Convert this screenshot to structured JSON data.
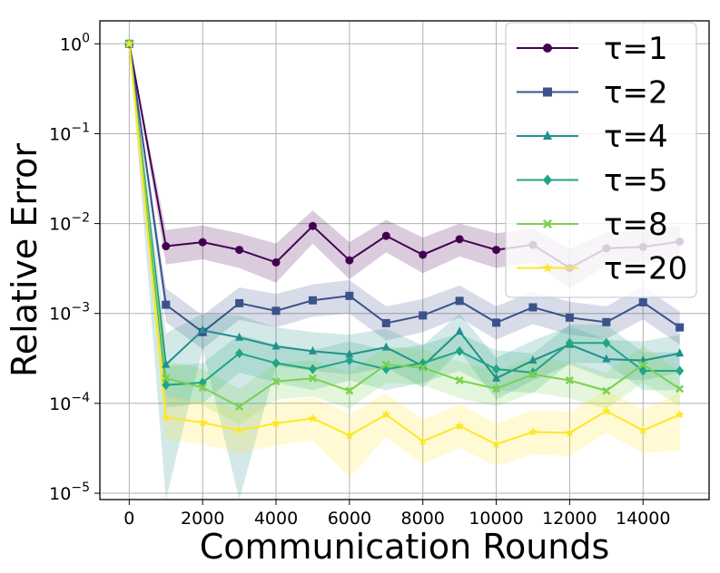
{
  "chart_data": {
    "type": "line",
    "xlabel": "Communication Rounds",
    "ylabel": "Relative Error",
    "yscale": "log",
    "xlim": [
      -800,
      15800
    ],
    "ylim": [
      8.5e-06,
      1.8
    ],
    "grid": true,
    "legend_position": "top-right",
    "x_ticks": [
      0,
      2000,
      4000,
      6000,
      8000,
      10000,
      12000,
      14000
    ],
    "x_tick_labels": [
      "0",
      "2000",
      "4000",
      "6000",
      "8000",
      "10000",
      "12000",
      "14000"
    ],
    "y_ticks": [
      1,
      0.1,
      0.01,
      0.001,
      0.0001,
      1e-05
    ],
    "y_tick_labels": [
      {
        "base": "10",
        "exp": "0"
      },
      {
        "base": "10",
        "exp": "−1"
      },
      {
        "base": "10",
        "exp": "−2"
      },
      {
        "base": "10",
        "exp": "−3"
      },
      {
        "base": "10",
        "exp": "−4"
      },
      {
        "base": "10",
        "exp": "−5"
      }
    ],
    "x": [
      0,
      1000,
      2000,
      3000,
      4000,
      5000,
      6000,
      7000,
      8000,
      9000,
      10000,
      11000,
      12000,
      13000,
      14000,
      15000
    ],
    "series": [
      {
        "name": "τ=1",
        "color": "#440154",
        "marker": "circle",
        "values": [
          1,
          0.0056,
          0.0062,
          0.0051,
          0.0037,
          0.0094,
          0.0039,
          0.0073,
          0.0045,
          0.0067,
          0.0051,
          0.0058,
          0.0032,
          0.0053,
          0.0055,
          0.0063
        ],
        "lower": [
          1,
          0.0035,
          0.004,
          0.0032,
          0.0022,
          0.006,
          0.0024,
          0.0048,
          0.0028,
          0.0043,
          0.0032,
          0.0037,
          0.0019,
          0.0034,
          0.0035,
          0.004
        ],
        "upper": [
          1,
          0.0085,
          0.0095,
          0.0078,
          0.006,
          0.014,
          0.0062,
          0.011,
          0.007,
          0.01,
          0.0078,
          0.0088,
          0.0052,
          0.008,
          0.0085,
          0.0095
        ]
      },
      {
        "name": "τ=2",
        "color": "#3b528b",
        "marker": "square",
        "values": [
          1,
          0.00125,
          0.00062,
          0.0013,
          0.00107,
          0.0014,
          0.00157,
          0.00078,
          0.00095,
          0.00138,
          0.00079,
          0.00117,
          0.0009,
          0.0008,
          0.00133,
          0.0007
        ],
        "lower": [
          1,
          0.0008,
          0.0004,
          0.00085,
          0.0007,
          0.00092,
          0.001,
          0.0005,
          0.00062,
          0.0009,
          0.00051,
          0.00076,
          0.00058,
          0.00052,
          0.00086,
          0.00045
        ],
        "upper": [
          1,
          0.0019,
          0.00095,
          0.00195,
          0.00165,
          0.0021,
          0.00235,
          0.0012,
          0.00145,
          0.00205,
          0.0012,
          0.00175,
          0.00135,
          0.0012,
          0.002,
          0.00105
        ]
      },
      {
        "name": "τ=4",
        "color": "#21908d",
        "marker": "triangle",
        "values": [
          1,
          0.00027,
          0.00065,
          0.00054,
          0.00043,
          0.00038,
          0.00035,
          0.00042,
          0.00026,
          0.00063,
          0.00019,
          0.0003,
          0.00045,
          0.00031,
          0.0003,
          0.00036
        ],
        "lower": [
          1,
          8.5e-06,
          0.0004,
          8.5e-06,
          0.00026,
          0.00023,
          0.00021,
          0.00025,
          0.00015,
          0.00038,
          0.00011,
          0.00018,
          0.00027,
          0.00019,
          0.00018,
          0.00022
        ],
        "upper": [
          1,
          0.0006,
          0.001,
          0.00095,
          0.0007,
          0.00062,
          0.00058,
          0.00068,
          0.00044,
          0.001,
          0.00032,
          0.0005,
          0.00072,
          0.00051,
          0.00049,
          0.00058
        ]
      },
      {
        "name": "τ=5",
        "color": "#21a584",
        "marker": "diamond",
        "values": [
          1,
          0.00016,
          0.00017,
          0.00036,
          0.00028,
          0.00024,
          0.0003,
          0.00024,
          0.00028,
          0.00038,
          0.00024,
          0.00022,
          0.00047,
          0.00047,
          0.00023,
          0.00023
        ],
        "lower": [
          1,
          9e-05,
          0.0001,
          0.00022,
          0.00017,
          0.00014,
          0.00018,
          0.00014,
          0.00017,
          0.00023,
          0.00014,
          0.00013,
          0.00028,
          0.00028,
          0.00014,
          0.00014
        ],
        "upper": [
          1,
          0.00026,
          0.00028,
          0.00058,
          0.00045,
          0.00039,
          0.00049,
          0.00039,
          0.00045,
          0.0006,
          0.00039,
          0.00036,
          0.00075,
          0.00075,
          0.00037,
          0.00037
        ]
      },
      {
        "name": "τ=8",
        "color": "#7ad151",
        "marker": "x",
        "values": [
          1,
          0.00019,
          0.00015,
          9.2e-05,
          0.000175,
          0.00019,
          0.000138,
          0.00027,
          0.00025,
          0.00018,
          0.000145,
          0.00021,
          0.00018,
          0.000138,
          0.00027,
          0.000145
        ],
        "lower": [
          1,
          0.00012,
          9.5e-05,
          5.8e-05,
          0.00011,
          0.00012,
          8.7e-05,
          0.00017,
          0.00016,
          0.000114,
          9.2e-05,
          0.000133,
          0.000114,
          8.7e-05,
          0.00017,
          9.2e-05
        ],
        "upper": [
          1,
          0.0003,
          0.00024,
          0.000145,
          0.00028,
          0.0003,
          0.00022,
          0.00043,
          0.0004,
          0.00029,
          0.00023,
          0.00033,
          0.00029,
          0.00022,
          0.00043,
          0.00023
        ]
      },
      {
        "name": "τ=20",
        "color": "#fde725",
        "marker": "star",
        "values": [
          1,
          7e-05,
          6.1e-05,
          5e-05,
          6e-05,
          6.8e-05,
          4.4e-05,
          7.5e-05,
          3.8e-05,
          5.6e-05,
          3.5e-05,
          4.8e-05,
          4.7e-05,
          8.2e-05,
          5e-05,
          7.5e-05
        ],
        "lower": [
          1,
          4e-05,
          3.5e-05,
          2.8e-05,
          3.4e-05,
          3.9e-05,
          1.5e-05,
          4.2e-05,
          2.1e-05,
          3.2e-05,
          2e-05,
          2.7e-05,
          2.6e-05,
          4.7e-05,
          2.8e-05,
          3e-05
        ],
        "upper": [
          1,
          0.00012,
          0.000105,
          8.6e-05,
          0.000103,
          0.000117,
          7.6e-05,
          0.000129,
          6.6e-05,
          9.7e-05,
          6e-05,
          8.3e-05,
          8.1e-05,
          0.000141,
          8.6e-05,
          0.000129
        ]
      }
    ]
  }
}
